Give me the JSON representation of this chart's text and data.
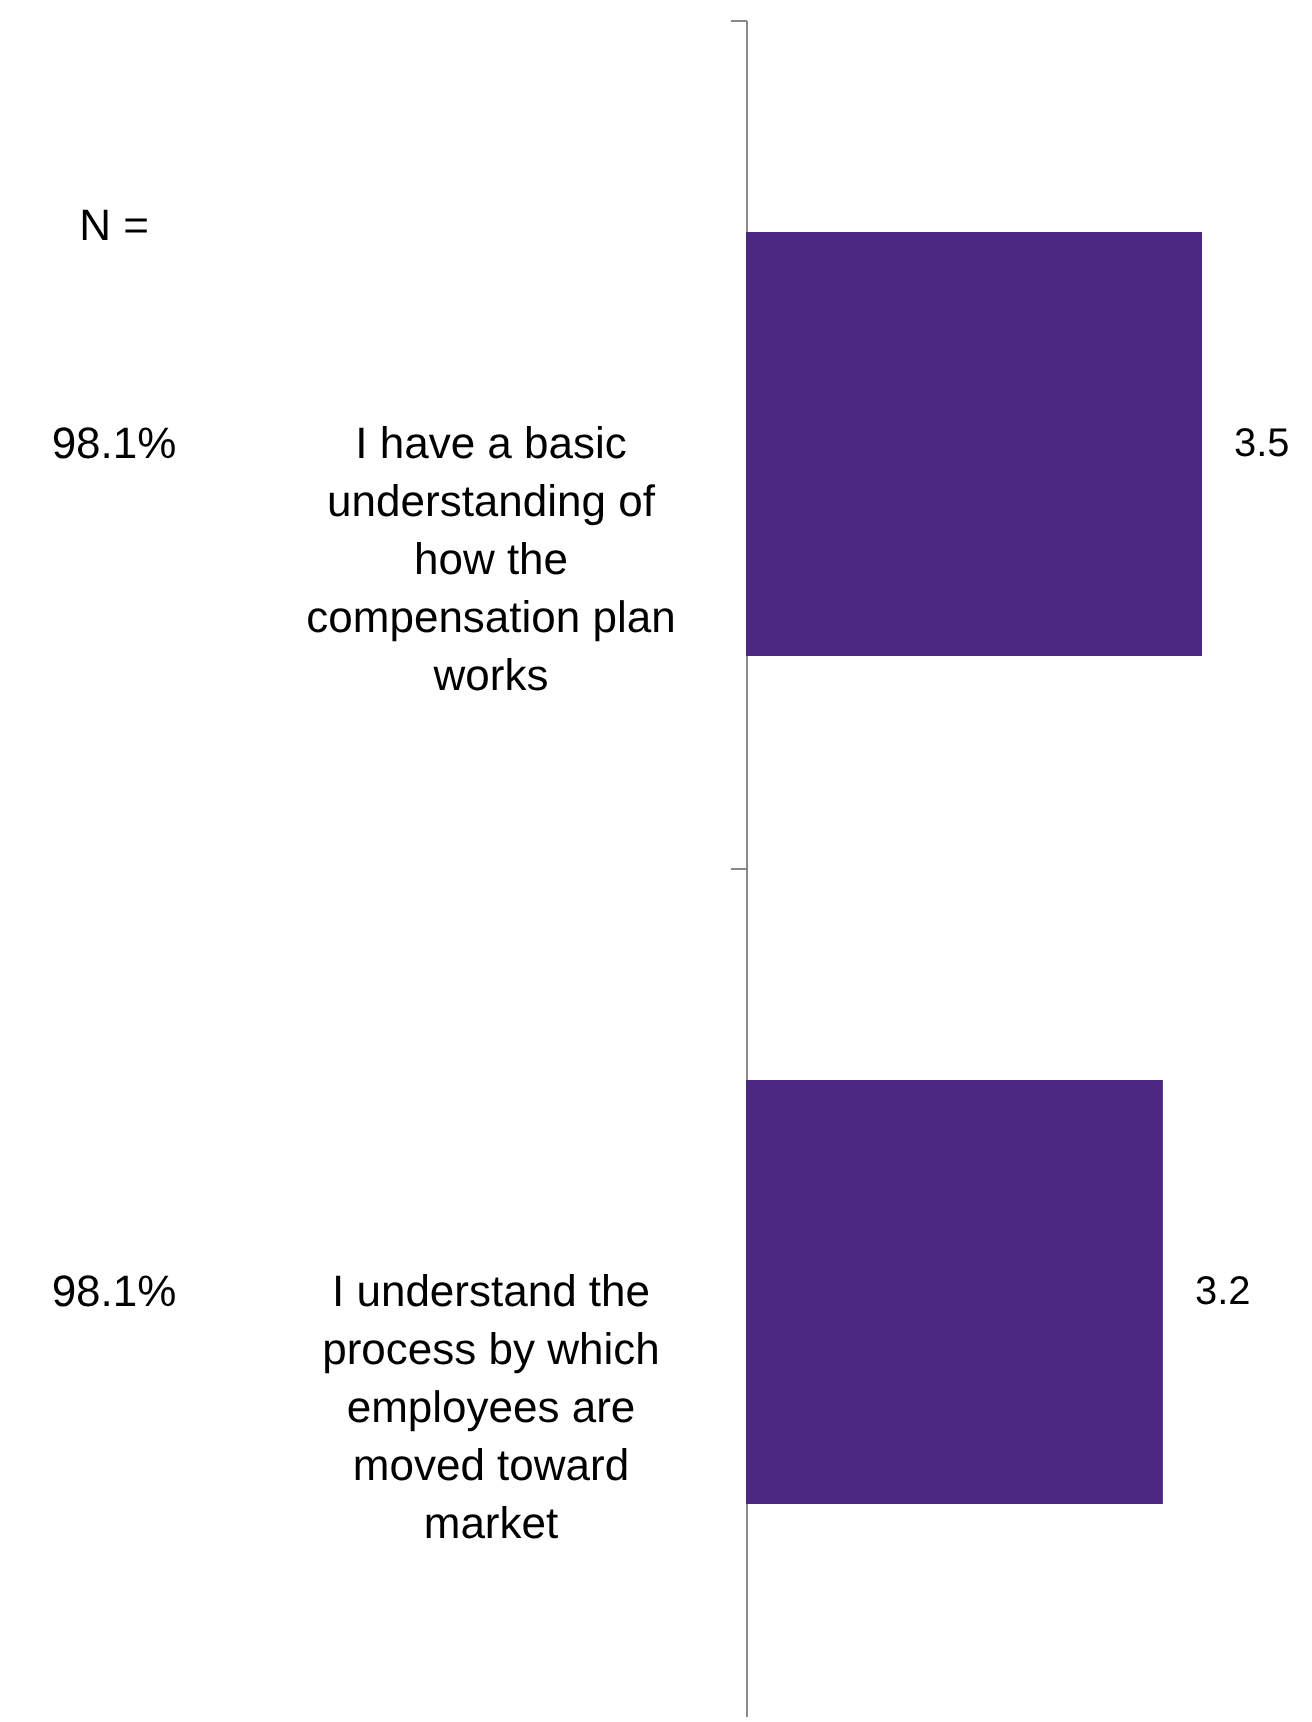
{
  "chart_data": {
    "type": "bar",
    "orientation": "horizontal",
    "categories": [
      "I have a basic understanding of how the compensation plan works",
      "I understand the process by which employees are moved toward market"
    ],
    "values": [
      3.5,
      3.2
    ],
    "color": "#4a2882",
    "data_labels": true,
    "annotations": [
      "N =",
      "98.1%",
      "98.1%"
    ]
  }
}
